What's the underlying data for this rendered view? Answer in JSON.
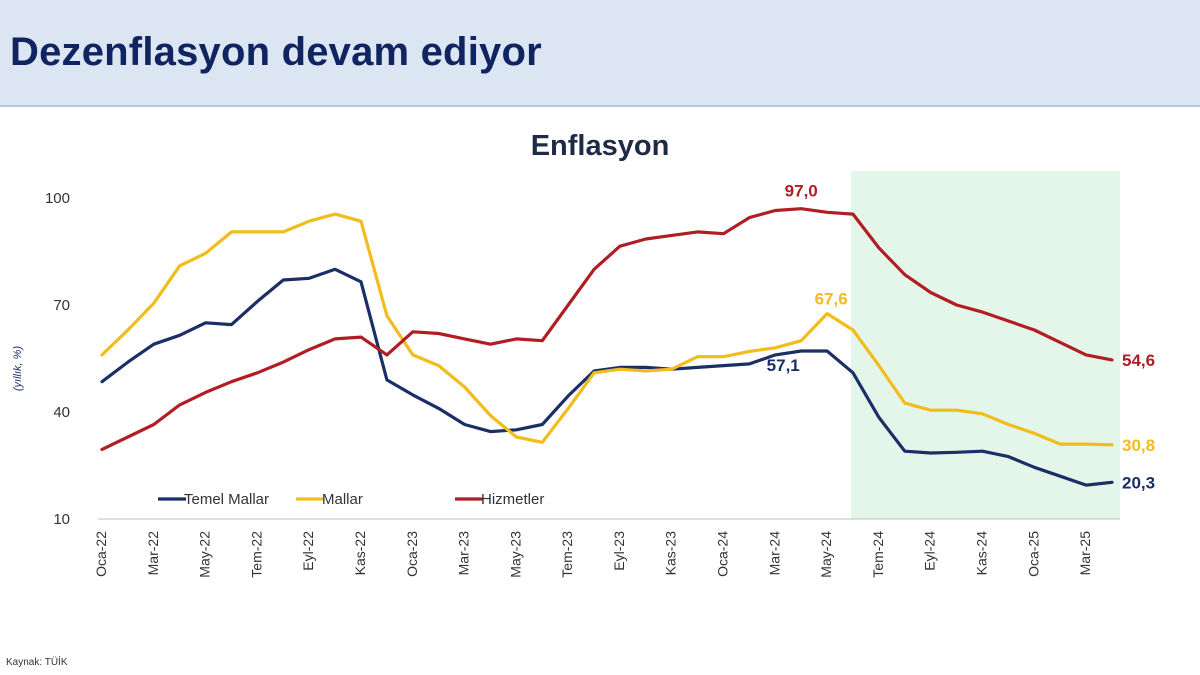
{
  "header": {
    "title": "Dezenflasyon devam ediyor"
  },
  "source_note": "Kaynak: TÜİK",
  "colors": {
    "temel_mallar": "#1b2f66",
    "mallar": "#f2bc1b",
    "hizmetler": "#b01e24",
    "highlight": "#e4f6ea",
    "axis_text": "#333333"
  },
  "chart_data": {
    "type": "line",
    "title": "Enflasyon",
    "ylabel": "(yıllık, %)",
    "xlabel": "",
    "ylim": [
      10,
      100
    ],
    "yticks": [
      10,
      40,
      70,
      100
    ],
    "grid": false,
    "legend_position": "bottom-left",
    "x": [
      "Oca-22",
      "Şub-22",
      "Mar-22",
      "Nis-22",
      "May-22",
      "Haz-22",
      "Tem-22",
      "Ağu-22",
      "Eyl-22",
      "Eki-22",
      "Kas-22",
      "Ara-22",
      "Oca-23",
      "Şub-23",
      "Mar-23",
      "Nis-23",
      "May-23",
      "Haz-23",
      "Tem-23",
      "Ağu-23",
      "Eyl-23",
      "Eki-23",
      "Kas-23",
      "Ara-23",
      "Oca-24",
      "Şub-24",
      "Mar-24",
      "Nis-24",
      "May-24",
      "Haz-24",
      "Tem-24",
      "Ağu-24",
      "Eyl-24",
      "Eki-24",
      "Kas-24",
      "Ara-24",
      "Oca-25",
      "Şub-25",
      "Mar-25",
      "Nis-25"
    ],
    "x_tick_labels": [
      "Oca-22",
      "Mar-22",
      "May-22",
      "Tem-22",
      "Eyl-22",
      "Kas-22",
      "Oca-23",
      "Mar-23",
      "May-23",
      "Tem-23",
      "Eyl-23",
      "Kas-23",
      "Oca-24",
      "Mar-24",
      "May-24",
      "Tem-24",
      "Eyl-24",
      "Kas-24",
      "Oca-25",
      "Mar-25"
    ],
    "highlight_range": [
      "Haz-24",
      "Nis-25"
    ],
    "series": [
      {
        "name": "Temel Mallar",
        "color": "#1b2f66",
        "values": [
          48.5,
          54,
          59,
          61.5,
          65,
          64.5,
          71,
          77,
          77.5,
          80,
          76.5,
          49,
          44.8,
          41,
          36.5,
          34.5,
          35,
          36.5,
          44.5,
          51.5,
          52.5,
          52.5,
          52,
          52.5,
          53,
          53.5,
          56,
          57.1,
          57.1,
          51,
          38.5,
          29,
          28.5,
          28.7,
          29,
          27.5,
          24.5,
          22,
          19.5,
          20.3
        ],
        "end_label": "20,3",
        "annotations": [
          {
            "x": "Nis-24",
            "text": "57,1"
          }
        ]
      },
      {
        "name": "Mallar",
        "color": "#f2bc1b",
        "values": [
          56,
          63,
          70.5,
          81,
          84.5,
          90.5,
          90.5,
          90.5,
          93.5,
          95.5,
          93.5,
          67,
          56,
          53,
          47,
          39,
          33,
          31.5,
          41,
          51,
          52,
          51.5,
          52,
          55.5,
          55.5,
          57,
          58,
          60,
          67.6,
          63,
          53,
          42.5,
          40.5,
          40.5,
          39.5,
          36.5,
          34,
          31,
          31,
          30.8
        ],
        "end_label": "30,8",
        "annotations": [
          {
            "x": "May-24",
            "text": "67,6"
          }
        ]
      },
      {
        "name": "Hizmetler",
        "color": "#b01e24",
        "values": [
          29.5,
          33,
          36.5,
          42,
          45.5,
          48.5,
          51,
          54,
          57.5,
          60.5,
          61,
          56,
          62.5,
          62,
          60.5,
          59,
          60.5,
          60,
          70,
          80,
          86.5,
          88.5,
          89.5,
          90.5,
          90,
          94.5,
          96.5,
          97,
          96,
          95.5,
          86,
          78.5,
          73.5,
          70,
          68,
          65.5,
          63,
          59.5,
          56,
          54.6
        ],
        "end_label": "54,6",
        "annotations": [
          {
            "x": "Nis-24",
            "text": "97,0"
          }
        ]
      }
    ]
  }
}
